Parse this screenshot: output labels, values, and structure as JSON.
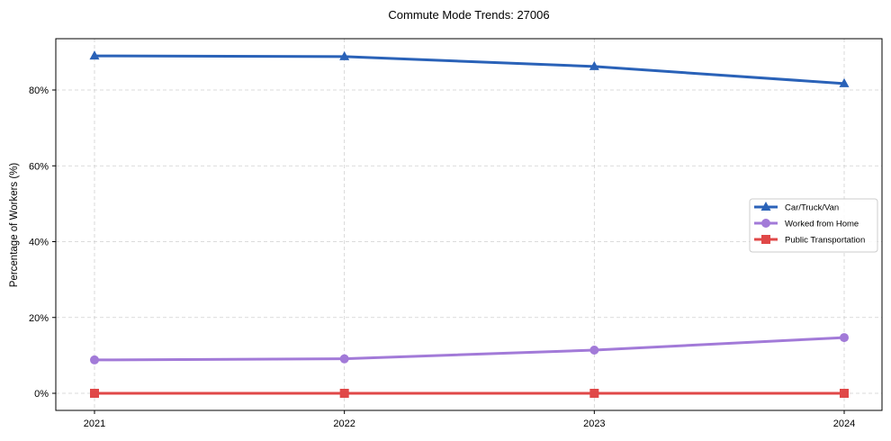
{
  "chart_data": {
    "type": "line",
    "title": "Commute Mode Trends: 27006",
    "xlabel": "",
    "ylabel": "Percentage of Workers (%)",
    "x": [
      "2021",
      "2022",
      "2023",
      "2024"
    ],
    "ylim": [
      -4.5,
      93
    ],
    "yticks": [
      0,
      20,
      40,
      60,
      80
    ],
    "ytick_labels": [
      "0%",
      "20%",
      "40%",
      "60%",
      "80%"
    ],
    "grid": true,
    "legend_position": "center right",
    "series": [
      {
        "name": "Car/Truck/Van",
        "values": [
          89.0,
          88.8,
          86.2,
          81.7
        ],
        "color": "#2a62b8",
        "marker": "triangle"
      },
      {
        "name": "Worked from Home",
        "values": [
          8.8,
          9.1,
          11.4,
          14.7
        ],
        "color": "#a27ad8",
        "marker": "circle"
      },
      {
        "name": "Public Transportation",
        "values": [
          0.0,
          0.0,
          0.0,
          0.0
        ],
        "color": "#e04848",
        "marker": "square"
      }
    ]
  }
}
